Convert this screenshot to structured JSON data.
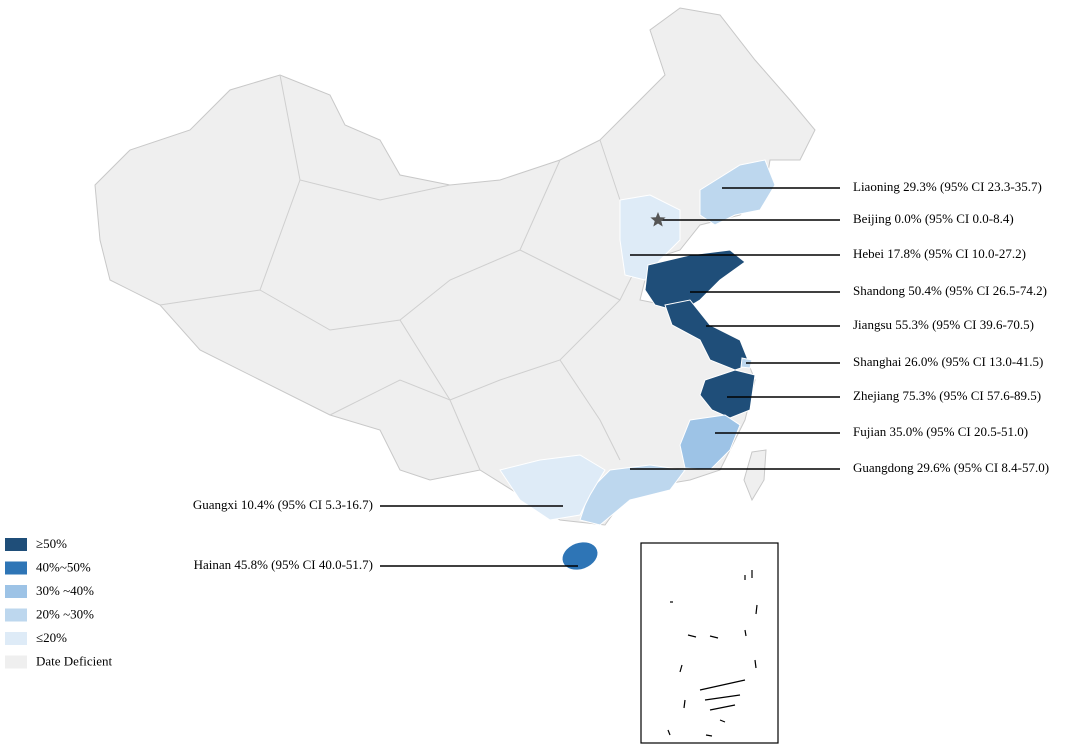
{
  "annotations": [
    {
      "text": "Liaoning 29.3% (95% CI 23.3-35.7)",
      "color": "#bdd7ee"
    },
    {
      "text": "Beijing 0.0% (95% CI 0.0-8.4)"
    },
    {
      "text": "Hebei 17.8% (95% CI 10.0-27.2)",
      "color": "#deebf7"
    },
    {
      "text": "Shandong 50.4% (95% CI 26.5-74.2)",
      "color": "#1f4e79"
    },
    {
      "text": "Jiangsu 55.3% (95% CI 39.6-70.5)",
      "color": "#1f4e79"
    },
    {
      "text": "Shanghai 26.0% (95% CI 13.0-41.5)",
      "color": "#bdd7ee"
    },
    {
      "text": "Zhejiang 75.3% (95% CI 57.6-89.5)",
      "color": "#1f4e79"
    },
    {
      "text": "Fujian 35.0% (95% CI 20.5-51.0)",
      "color": "#9dc3e6"
    },
    {
      "text": "Guangdong 29.6% (95% CI 8.4-57.0)",
      "color": "#bdd7ee"
    },
    {
      "text": "Guangxi 10.4% (95% CI 5.3-16.7)",
      "color": "#deebf7"
    },
    {
      "text": "Hainan 45.8% (95% CI 40.0-51.7)",
      "color": "#2e75b6"
    }
  ],
  "legend": [
    {
      "label": "≥50%",
      "color": "#1f4e79"
    },
    {
      "label": "40%~50%",
      "color": "#2e75b6"
    },
    {
      "label": "30% ~40%",
      "color": "#9dc3e6"
    },
    {
      "label": "20% ~30%",
      "color": "#bdd7ee"
    },
    {
      "label": "≤20%",
      "color": "#deebf7"
    },
    {
      "label": "Date Deficient",
      "color": "#efefef"
    }
  ]
}
